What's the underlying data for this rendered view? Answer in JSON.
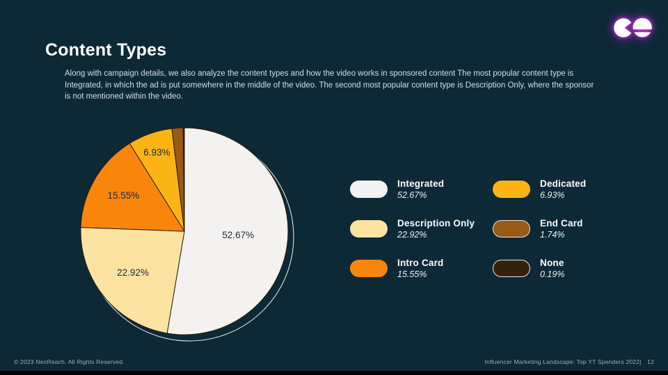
{
  "slide": {
    "title": "Content Types",
    "description": "Along with campaign details, we also analyze the content types and how the video works in sponsored content The most popular content type is Integrated, in which the ad is put somewhere in the middle of the video. The second most popular content type is Description Only, where the sponsor is not mentioned within the video.",
    "footer": {
      "copyright": "© 2023 NeoReach. All Rights Reserved.",
      "source": "Influencer Marketing Landscape:  Top YT Spenders 2022|",
      "page": "12"
    }
  },
  "colors": {
    "background": "#0d2936",
    "bottom_bar": "#000000",
    "title_text": "#ffffff",
    "body_text": "#d6dfe4",
    "slice_stroke": "#2a1b06",
    "slice_label_text": "#1c2733",
    "ring_outline": "#f5f3f0",
    "logo_glow": "#c82be0",
    "logo_shapes": "#ffffff"
  },
  "legend": {
    "items": [
      {
        "name": "Integrated",
        "value": "52.67%",
        "color": "#f4f2f0",
        "outlined": false
      },
      {
        "name": "Description Only",
        "value": "22.92%",
        "color": "#fce3a2",
        "outlined": false
      },
      {
        "name": "Intro Card",
        "value": "15.55%",
        "color": "#f9860c",
        "outlined": false
      },
      {
        "name": "Dedicated",
        "value": "6.93%",
        "color": "#fbb414",
        "outlined": false
      },
      {
        "name": "End Card",
        "value": "1.74%",
        "color": "#985a16",
        "outlined": true
      },
      {
        "name": "None",
        "value": "0.19%",
        "color": "#33220e",
        "outlined": true
      }
    ]
  },
  "chart_data": {
    "type": "pie",
    "title": "Content Types",
    "labels": [
      "Integrated",
      "Description Only",
      "Intro Card",
      "Dedicated",
      "End Card",
      "None"
    ],
    "values": [
      52.67,
      22.92,
      15.55,
      6.93,
      1.74,
      0.19
    ],
    "slice_labels": [
      "52.67%",
      "22.92%",
      "15.55%",
      "6.93%",
      "1.74%",
      "0.19%"
    ],
    "colors": [
      "#f4f2f0",
      "#fce3a2",
      "#f9860c",
      "#fbb414",
      "#985a16",
      "#33220e"
    ],
    "start_angle": "12 o'clock",
    "direction": "clockwise",
    "legend_position": "right",
    "min_pct_for_inline_label": 5
  }
}
